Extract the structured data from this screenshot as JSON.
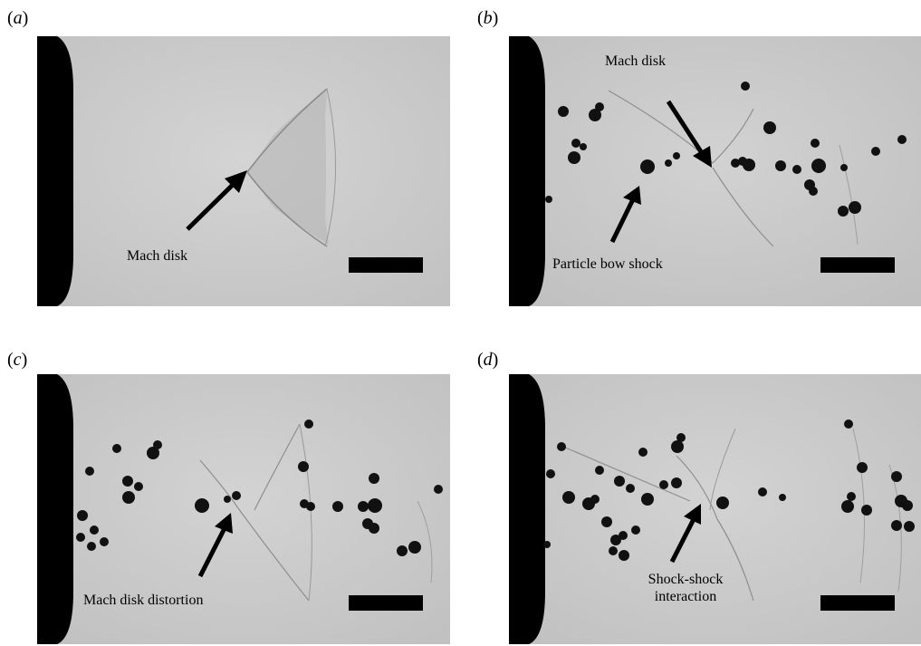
{
  "panels": [
    {
      "letter": "a",
      "annotations": [
        "Mach disk"
      ]
    },
    {
      "letter": "b",
      "annotations": [
        "Mach disk",
        "Particle bow shock"
      ]
    },
    {
      "letter": "c",
      "annotations": [
        "Mach disk distortion"
      ]
    },
    {
      "letter": "d",
      "annotations": [
        "Shock-shock",
        "interaction"
      ]
    }
  ],
  "colors": {
    "background": "#c9c9c9",
    "nozzle": "#000000",
    "particle": "#111111",
    "arrow": "#000000"
  }
}
